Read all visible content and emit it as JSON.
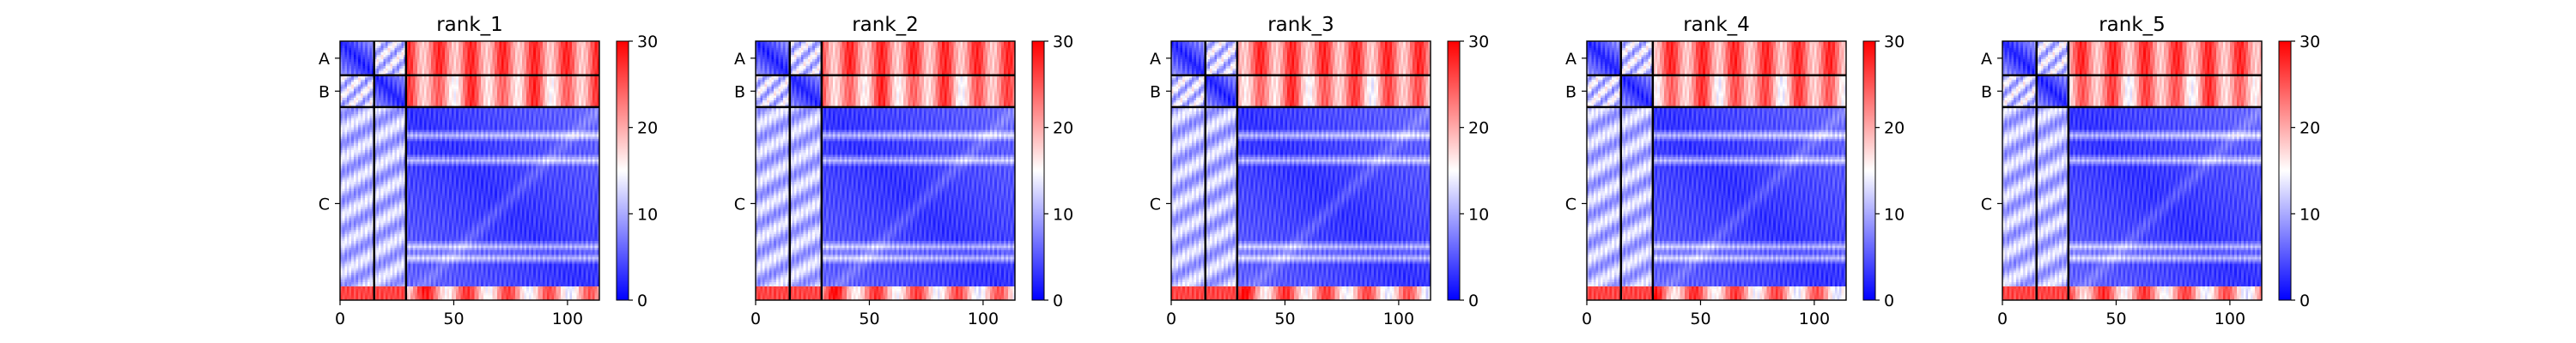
{
  "figure": {
    "background": "#ffffff"
  },
  "chart_data": [
    {
      "type": "heatmap",
      "title": "rank_1",
      "xlabel": "",
      "ylabel": "",
      "chains": [
        {
          "label": "A",
          "start": 0,
          "end": 15
        },
        {
          "label": "B",
          "start": 15,
          "end": 29
        },
        {
          "label": "C",
          "start": 29,
          "end": 114
        }
      ],
      "x_ticks": [
        0,
        50,
        100
      ],
      "xlim": [
        0,
        114
      ],
      "colorbar": {
        "vmin": 0,
        "vmax": 30,
        "ticks": [
          0,
          10,
          20,
          30
        ],
        "colors": [
          "#0000ff",
          "#ffffff",
          "#ff0000"
        ]
      }
    },
    {
      "type": "heatmap",
      "title": "rank_2",
      "xlabel": "",
      "ylabel": "",
      "chains": [
        {
          "label": "A",
          "start": 0,
          "end": 15
        },
        {
          "label": "B",
          "start": 15,
          "end": 29
        },
        {
          "label": "C",
          "start": 29,
          "end": 114
        }
      ],
      "x_ticks": [
        0,
        50,
        100
      ],
      "xlim": [
        0,
        114
      ],
      "colorbar": {
        "vmin": 0,
        "vmax": 30,
        "ticks": [
          0,
          10,
          20,
          30
        ],
        "colors": [
          "#0000ff",
          "#ffffff",
          "#ff0000"
        ]
      }
    },
    {
      "type": "heatmap",
      "title": "rank_3",
      "xlabel": "",
      "ylabel": "",
      "chains": [
        {
          "label": "A",
          "start": 0,
          "end": 15
        },
        {
          "label": "B",
          "start": 15,
          "end": 29
        },
        {
          "label": "C",
          "start": 29,
          "end": 114
        }
      ],
      "x_ticks": [
        0,
        50,
        100
      ],
      "xlim": [
        0,
        114
      ],
      "colorbar": {
        "vmin": 0,
        "vmax": 30,
        "ticks": [
          0,
          10,
          20,
          30
        ],
        "colors": [
          "#0000ff",
          "#ffffff",
          "#ff0000"
        ]
      }
    },
    {
      "type": "heatmap",
      "title": "rank_4",
      "xlabel": "",
      "ylabel": "",
      "chains": [
        {
          "label": "A",
          "start": 0,
          "end": 15
        },
        {
          "label": "B",
          "start": 15,
          "end": 29
        },
        {
          "label": "C",
          "start": 29,
          "end": 114
        }
      ],
      "x_ticks": [
        0,
        50,
        100
      ],
      "xlim": [
        0,
        114
      ],
      "colorbar": {
        "vmin": 0,
        "vmax": 30,
        "ticks": [
          0,
          10,
          20,
          30
        ],
        "colors": [
          "#0000ff",
          "#ffffff",
          "#ff0000"
        ]
      }
    },
    {
      "type": "heatmap",
      "title": "rank_5",
      "xlabel": "",
      "ylabel": "",
      "chains": [
        {
          "label": "A",
          "start": 0,
          "end": 15
        },
        {
          "label": "B",
          "start": 15,
          "end": 29
        },
        {
          "label": "C",
          "start": 29,
          "end": 114
        }
      ],
      "x_ticks": [
        0,
        50,
        100
      ],
      "xlim": [
        0,
        114
      ],
      "colorbar": {
        "vmin": 0,
        "vmax": 30,
        "ticks": [
          0,
          10,
          20,
          30
        ],
        "colors": [
          "#0000ff",
          "#ffffff",
          "#ff0000"
        ]
      }
    }
  ]
}
